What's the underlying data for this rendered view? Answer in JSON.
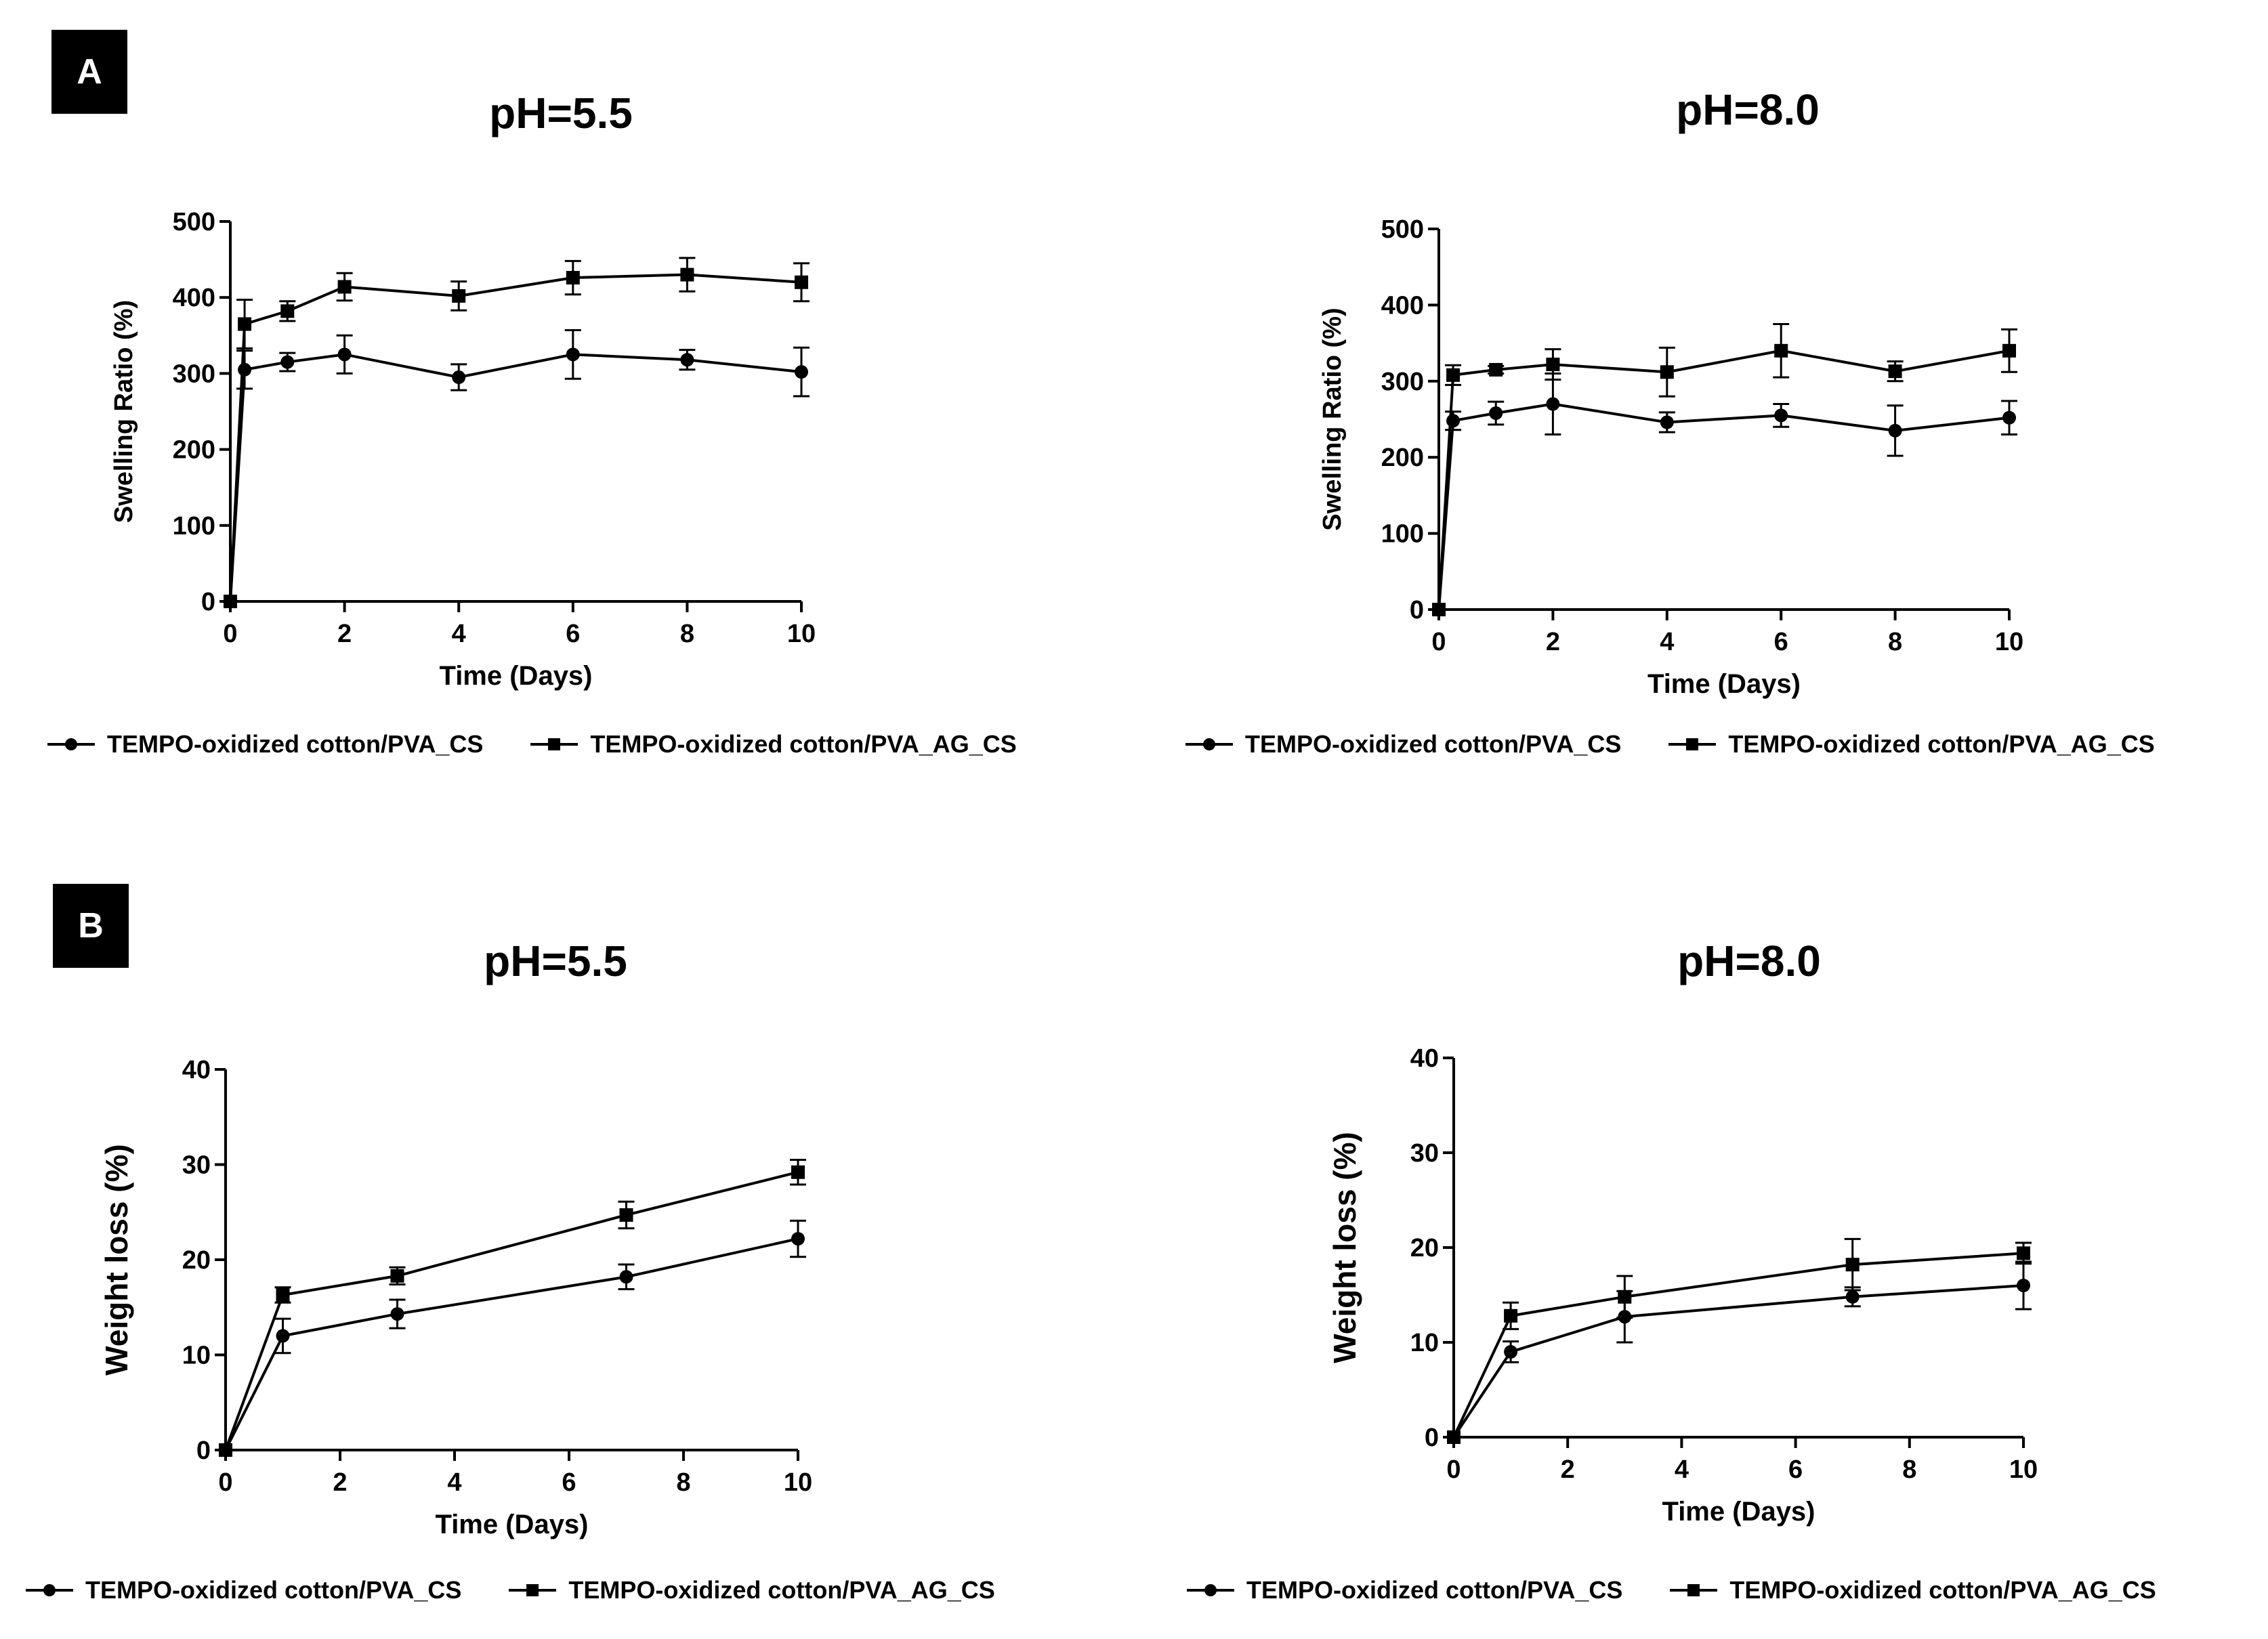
{
  "panels": {
    "A": {
      "label": "A"
    },
    "B": {
      "label": "B"
    }
  },
  "legend": {
    "series1": "TEMPO-oxidized cotton/PVA_CS",
    "series2": "TEMPO-oxidized cotton/PVA_AG_CS"
  },
  "chart_data": [
    {
      "id": "A-left",
      "panel": "A",
      "type": "line",
      "title": "pH=5.5",
      "xlabel": "Time (Days)",
      "ylabel": "Swelling Ratio (%)",
      "xlim": [
        0,
        10
      ],
      "ylim": [
        0,
        500
      ],
      "xticks": [
        0,
        2,
        4,
        6,
        8,
        10
      ],
      "yticks": [
        0,
        100,
        200,
        300,
        400,
        500
      ],
      "series": [
        {
          "name": "TEMPO-oxidized cotton/PVA_CS",
          "marker": "circle",
          "x": [
            0,
            0.25,
            1,
            2,
            4,
            6,
            8,
            10
          ],
          "y": [
            0,
            305,
            315,
            325,
            295,
            325,
            318,
            302
          ],
          "err": [
            0,
            25,
            12,
            25,
            17,
            32,
            13,
            32
          ]
        },
        {
          "name": "TEMPO-oxidized cotton/PVA_AG_CS",
          "marker": "square",
          "x": [
            0,
            0.25,
            1,
            2,
            4,
            6,
            8,
            10
          ],
          "y": [
            0,
            365,
            382,
            414,
            402,
            426,
            430,
            420
          ],
          "err": [
            0,
            32,
            13,
            18,
            19,
            22,
            22,
            25
          ]
        }
      ]
    },
    {
      "id": "A-right",
      "panel": "A",
      "type": "line",
      "title": "pH=8.0",
      "xlabel": "Time (Days)",
      "ylabel": "Swelling Ratio (%)",
      "xlim": [
        0,
        10
      ],
      "ylim": [
        0,
        500
      ],
      "xticks": [
        0,
        2,
        4,
        6,
        8,
        10
      ],
      "yticks": [
        0,
        100,
        200,
        300,
        400,
        500
      ],
      "series": [
        {
          "name": "TEMPO-oxidized cotton/PVA_CS",
          "marker": "circle",
          "x": [
            0,
            0.25,
            1,
            2,
            4,
            6,
            8,
            10
          ],
          "y": [
            0,
            248,
            258,
            270,
            246,
            255,
            235,
            252
          ],
          "err": [
            0,
            12,
            15,
            40,
            13,
            15,
            33,
            22
          ]
        },
        {
          "name": "TEMPO-oxidized cotton/PVA_AG_CS",
          "marker": "square",
          "x": [
            0,
            0.25,
            1,
            2,
            4,
            6,
            8,
            10
          ],
          "y": [
            0,
            308,
            315,
            322,
            312,
            340,
            313,
            340
          ],
          "err": [
            0,
            13,
            5,
            20,
            32,
            35,
            13,
            28
          ]
        }
      ]
    },
    {
      "id": "B-left",
      "panel": "B",
      "type": "line",
      "title": "pH=5.5",
      "xlabel": "Time (Days)",
      "ylabel": "Weight loss  (%)",
      "xlim": [
        0,
        10
      ],
      "ylim": [
        0,
        40
      ],
      "xticks": [
        0,
        2,
        4,
        6,
        8,
        10
      ],
      "yticks": [
        0,
        10,
        20,
        30,
        40
      ],
      "series": [
        {
          "name": "TEMPO-oxidized cotton/PVA_CS",
          "marker": "circle",
          "x": [
            0,
            1,
            3,
            7,
            10
          ],
          "y": [
            0,
            12,
            14.3,
            18.2,
            22.2
          ],
          "err": [
            0,
            1.8,
            1.5,
            1.3,
            1.9
          ]
        },
        {
          "name": "TEMPO-oxidized cotton/PVA_AG_CS",
          "marker": "square",
          "x": [
            0,
            1,
            3,
            7,
            10
          ],
          "y": [
            0,
            16.3,
            18.3,
            24.7,
            29.2
          ],
          "err": [
            0,
            0.8,
            0.9,
            1.4,
            1.3
          ]
        }
      ]
    },
    {
      "id": "B-right",
      "panel": "B",
      "type": "line",
      "title": "pH=8.0",
      "xlabel": "Time (Days)",
      "ylabel": "Weight loss  (%)",
      "xlim": [
        0,
        10
      ],
      "ylim": [
        0,
        40
      ],
      "xticks": [
        0,
        2,
        4,
        6,
        8,
        10
      ],
      "yticks": [
        0,
        10,
        20,
        30,
        40
      ],
      "series": [
        {
          "name": "TEMPO-oxidized cotton/PVA_CS",
          "marker": "circle",
          "x": [
            0,
            1,
            3,
            7,
            10
          ],
          "y": [
            0,
            9,
            12.7,
            14.8,
            16
          ],
          "err": [
            0,
            1.1,
            2.7,
            1.0,
            2.5
          ]
        },
        {
          "name": "TEMPO-oxidized cotton/PVA_AG_CS",
          "marker": "square",
          "x": [
            0,
            1,
            3,
            7,
            10
          ],
          "y": [
            0,
            12.8,
            14.8,
            18.2,
            19.4
          ],
          "err": [
            0,
            1.4,
            2.2,
            2.7,
            1.1
          ]
        }
      ]
    }
  ]
}
